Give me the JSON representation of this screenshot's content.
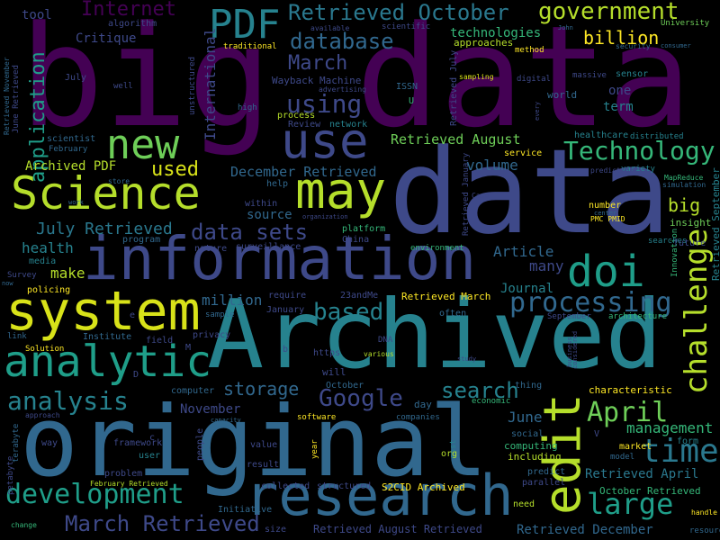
{
  "background": "#000000",
  "palette": {
    "purple": "#440154",
    "violet": "#482677",
    "indigo": "#3e4989",
    "blue": "#31688e",
    "teal": "#26828e",
    "green": "#1f9e89",
    "mint": "#35b779",
    "lime": "#6ece58",
    "yellowgreen": "#b5de2b",
    "yellow": "#fde725"
  },
  "words": [
    {
      "text": "big data",
      "color": "#440154"
    },
    {
      "text": "data",
      "color": "#3e4989"
    },
    {
      "text": "Archived",
      "color": "#26828e"
    },
    {
      "text": "original",
      "color": "#31688e"
    },
    {
      "text": "information",
      "color": "#3e4989"
    },
    {
      "text": "Science",
      "color": "#b5de2b"
    },
    {
      "text": "system",
      "color": "#d8e219"
    },
    {
      "text": "research",
      "color": "#31688e"
    },
    {
      "text": "may",
      "color": "#b5de2b"
    },
    {
      "text": "use",
      "color": "#3e4989"
    },
    {
      "text": "new",
      "color": "#6ece58"
    },
    {
      "text": "edit",
      "color": "#b5de2b"
    },
    {
      "text": "analytic",
      "color": "#1f9e89"
    },
    {
      "text": "doi",
      "color": "#1f9e89"
    },
    {
      "text": "PDF",
      "color": "#26828e"
    },
    {
      "text": "development",
      "color": "#1f9e89"
    },
    {
      "text": "challenge",
      "color": "#b5de2b"
    },
    {
      "text": "analysis",
      "color": "#26828e"
    },
    {
      "text": "processing",
      "color": "#31688e"
    },
    {
      "text": "large",
      "color": "#1f9e89"
    },
    {
      "text": "time",
      "color": "#2a788e"
    },
    {
      "text": "Technology",
      "color": "#35b779"
    },
    {
      "text": "April",
      "color": "#6ece58"
    },
    {
      "text": "Google",
      "color": "#3e4989"
    },
    {
      "text": "search",
      "color": "#26828e"
    },
    {
      "text": "March Retrieved",
      "color": "#3e4989"
    },
    {
      "text": "Retrieved October",
      "color": "#2a788e"
    },
    {
      "text": "government",
      "color": "#b5de2b"
    },
    {
      "text": "database",
      "color": "#31688e"
    },
    {
      "text": "Internet",
      "color": "#440154"
    },
    {
      "text": "using",
      "color": "#3e4989"
    },
    {
      "text": "March",
      "color": "#3e4989"
    },
    {
      "text": "based",
      "color": "#26828e"
    },
    {
      "text": "data sets",
      "color": "#3e4989"
    },
    {
      "text": "application",
      "color": "#1f9e89"
    },
    {
      "text": "used",
      "color": "#d8e219"
    },
    {
      "text": "storage",
      "color": "#31688e"
    },
    {
      "text": "July Retrieved",
      "color": "#2a788e"
    },
    {
      "text": "management",
      "color": "#35b779"
    },
    {
      "text": "billion",
      "color": "#fde725"
    },
    {
      "text": "big",
      "color": "#b5de2b"
    },
    {
      "text": "Retrieved August",
      "color": "#6ece58"
    },
    {
      "text": "Article",
      "color": "#31688e"
    },
    {
      "text": "volume",
      "color": "#31688e"
    },
    {
      "text": "December Retrieved",
      "color": "#31688e"
    },
    {
      "text": "Archived PDF",
      "color": "#b5de2b"
    },
    {
      "text": "technologies",
      "color": "#35b779"
    },
    {
      "text": "Retrieved April",
      "color": "#2a788e"
    },
    {
      "text": "Retrieved December",
      "color": "#31688e"
    },
    {
      "text": "Retrieved August Retrieved",
      "color": "#3e4989"
    },
    {
      "text": "data analysis",
      "color": "#31688e"
    },
    {
      "text": "International",
      "color": "#3e4989"
    },
    {
      "text": "health",
      "color": "#26828e"
    },
    {
      "text": "make",
      "color": "#b5de2b"
    },
    {
      "text": "many",
      "color": "#3e4989"
    },
    {
      "text": "million",
      "color": "#31688e"
    },
    {
      "text": "Journal",
      "color": "#26828e"
    },
    {
      "text": "June",
      "color": "#31688e"
    },
    {
      "text": "November",
      "color": "#3e4989"
    },
    {
      "text": "one",
      "color": "#3e4989"
    },
    {
      "text": "term",
      "color": "#26828e"
    },
    {
      "text": "Critique",
      "color": "#3e4989"
    },
    {
      "text": "tool",
      "color": "#3e4989"
    },
    {
      "text": "Wayback Machine",
      "color": "#3e4989"
    },
    {
      "text": "Retrieved March",
      "color": "#fde725"
    },
    {
      "text": "source",
      "color": "#31688e"
    },
    {
      "text": "computing",
      "color": "#35b779"
    },
    {
      "text": "including",
      "color": "#b5de2b"
    },
    {
      "text": "approaches",
      "color": "#b5de2b"
    },
    {
      "text": "Retrieved September",
      "color": "#26828e"
    },
    {
      "text": "October Retrieved",
      "color": "#35b779"
    },
    {
      "text": "S2CID Archived",
      "color": "#fde725"
    },
    {
      "text": "Innovation",
      "color": "#35b779"
    },
    {
      "text": "characteristic",
      "color": "#fde725"
    },
    {
      "text": "insight",
      "color": "#6ece58"
    },
    {
      "text": "healthcare",
      "color": "#26828e"
    },
    {
      "text": "sensor",
      "color": "#26828e"
    },
    {
      "text": "world",
      "color": "#31688e"
    },
    {
      "text": "ISSN",
      "color": "#31688e"
    },
    {
      "text": "U",
      "color": "#35b779"
    },
    {
      "text": "Retrieved July",
      "color": "#3e4989"
    },
    {
      "text": "Retrieved January",
      "color": "#3e4989"
    },
    {
      "text": "Retrieved November",
      "color": "#31688e"
    },
    {
      "text": "June Retrieved",
      "color": "#3e4989"
    },
    {
      "text": "scientist",
      "color": "#31688e"
    },
    {
      "text": "February",
      "color": "#31688e"
    },
    {
      "text": "July",
      "color": "#3e4989"
    },
    {
      "text": "unstructured",
      "color": "#3e4989"
    },
    {
      "text": "algorithm",
      "color": "#3e4989"
    },
    {
      "text": "high",
      "color": "#31688e"
    },
    {
      "text": "process",
      "color": "#b5de2b"
    },
    {
      "text": "Review",
      "color": "#3e4989"
    },
    {
      "text": "network",
      "color": "#26828e"
    },
    {
      "text": "scientific",
      "color": "#3e4989"
    },
    {
      "text": "traditional",
      "color": "#fde725"
    },
    {
      "text": "method",
      "color": "#fde725"
    },
    {
      "text": "University",
      "color": "#6ece58"
    },
    {
      "text": "security",
      "color": "#31688e"
    },
    {
      "text": "consumer",
      "color": "#31688e"
    },
    {
      "text": "massive",
      "color": "#3e4989"
    },
    {
      "text": "sampling",
      "color": "#d8e219"
    },
    {
      "text": "digital",
      "color": "#3e4989"
    },
    {
      "text": "advertising",
      "color": "#3e4989"
    },
    {
      "text": "well",
      "color": "#3e4989"
    },
    {
      "text": "distributed",
      "color": "#26828e"
    },
    {
      "text": "service",
      "color": "#fde725"
    },
    {
      "text": "variety",
      "color": "#26828e"
    },
    {
      "text": "prediction",
      "color": "#3e4989"
    },
    {
      "text": "MapReduce",
      "color": "#35b779"
    },
    {
      "text": "simulation",
      "color": "#31688e"
    },
    {
      "text": "number",
      "color": "#fde725"
    },
    {
      "text": "PMC PMID",
      "color": "#fde725"
    },
    {
      "text": "center",
      "color": "#31688e"
    },
    {
      "text": "searches",
      "color": "#26828e"
    },
    {
      "text": "future",
      "color": "#3e4989"
    },
    {
      "text": "environment",
      "color": "#35b779"
    },
    {
      "text": "help",
      "color": "#31688e"
    },
    {
      "text": "store",
      "color": "#31688e"
    },
    {
      "text": "within",
      "color": "#3e4989"
    },
    {
      "text": "surveillance",
      "color": "#3e4989"
    },
    {
      "text": "platform",
      "color": "#35b779"
    },
    {
      "text": "China",
      "color": "#3e4989"
    },
    {
      "text": "program",
      "color": "#31688e"
    },
    {
      "text": "nature",
      "color": "#3e4989"
    },
    {
      "text": "media",
      "color": "#26828e"
    },
    {
      "text": "policing",
      "color": "#fde725"
    },
    {
      "text": "Survey",
      "color": "#3e4989"
    },
    {
      "text": "now",
      "color": "#31688e"
    },
    {
      "text": "require",
      "color": "#3e4989"
    },
    {
      "text": "23andMe",
      "color": "#3e4989"
    },
    {
      "text": "January",
      "color": "#3e4989"
    },
    {
      "text": "often",
      "color": "#31688e"
    },
    {
      "text": "September",
      "color": "#3e4989"
    },
    {
      "text": "architecture",
      "color": "#35b779"
    },
    {
      "text": "considered",
      "color": "#3e4989"
    },
    {
      "text": "link",
      "color": "#31688e"
    },
    {
      "text": "Institute",
      "color": "#31688e"
    },
    {
      "text": "field",
      "color": "#3e4989"
    },
    {
      "text": "privacy",
      "color": "#3e4989"
    },
    {
      "text": "sample",
      "color": "#31688e"
    },
    {
      "text": "M",
      "color": "#3e4989"
    },
    {
      "text": "b",
      "color": "#3e4989"
    },
    {
      "text": "e",
      "color": "#3e4989"
    },
    {
      "text": "https",
      "color": "#3e4989"
    },
    {
      "text": "DNA",
      "color": "#3e4989"
    },
    {
      "text": "various",
      "color": "#b5de2b"
    },
    {
      "text": "study",
      "color": "#3e4989"
    },
    {
      "text": "business",
      "color": "#3e4989"
    },
    {
      "text": "Solution",
      "color": "#fde725"
    },
    {
      "text": "will",
      "color": "#3e4989"
    },
    {
      "text": "D",
      "color": "#3e4989"
    },
    {
      "text": "computer",
      "color": "#31688e"
    },
    {
      "text": "terabyte",
      "color": "#31688e"
    },
    {
      "text": "approach",
      "color": "#3e4989"
    },
    {
      "text": "October",
      "color": "#31688e"
    },
    {
      "text": "thing",
      "color": "#31688e"
    },
    {
      "text": "economic",
      "color": "#35b779"
    },
    {
      "text": "day",
      "color": "#31688e"
    },
    {
      "text": "capacity",
      "color": "#31688e"
    },
    {
      "text": "software",
      "color": "#fde725"
    },
    {
      "text": "companies",
      "color": "#31688e"
    },
    {
      "text": "petabyte",
      "color": "#3e4989"
    },
    {
      "text": "way",
      "color": "#3e4989"
    },
    {
      "text": "framework",
      "color": "#3e4989"
    },
    {
      "text": "c",
      "color": "#3e4989"
    },
    {
      "text": "people",
      "color": "#3e4989"
    },
    {
      "text": "user",
      "color": "#26828e"
    },
    {
      "text": "value",
      "color": "#3e4989"
    },
    {
      "text": "year",
      "color": "#fde725"
    },
    {
      "text": "cost",
      "color": "#26828e"
    },
    {
      "text": "social",
      "color": "#31688e"
    },
    {
      "text": "org",
      "color": "#b5de2b"
    },
    {
      "text": "V",
      "color": "#3e4989"
    },
    {
      "text": "market",
      "color": "#fde725"
    },
    {
      "text": "form",
      "color": "#26828e"
    },
    {
      "text": "model",
      "color": "#31688e"
    },
    {
      "text": "result",
      "color": "#3e4989"
    },
    {
      "text": "problem",
      "color": "#3e4989"
    },
    {
      "text": "February Retrieved",
      "color": "#b5de2b"
    },
    {
      "text": "collected",
      "color": "#3e4989"
    },
    {
      "text": "structured",
      "color": "#3e4989"
    },
    {
      "text": "predict",
      "color": "#31688e"
    },
    {
      "text": "parallel",
      "color": "#3e4989"
    },
    {
      "text": "Initiative",
      "color": "#31688e"
    },
    {
      "text": "size",
      "color": "#3e4989"
    },
    {
      "text": "need",
      "color": "#b5de2b"
    },
    {
      "text": "change",
      "color": "#35b779"
    },
    {
      "text": "handle",
      "color": "#fde725"
    },
    {
      "text": "resource",
      "color": "#31688e"
    },
    {
      "text": "organization",
      "color": "#3e4989"
    },
    {
      "text": "Case",
      "color": "#3e4989"
    },
    {
      "text": "work",
      "color": "#31688e"
    },
    {
      "text": "available",
      "color": "#3e4989"
    },
    {
      "text": "John",
      "color": "#31688e"
    },
    {
      "text": "every",
      "color": "#3e4989"
    }
  ]
}
